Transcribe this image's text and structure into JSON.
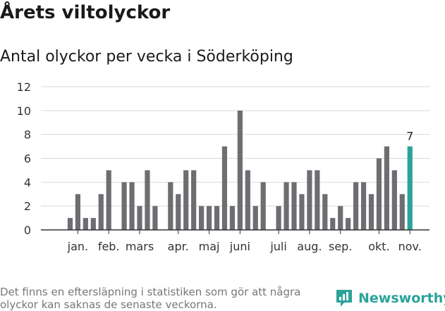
{
  "header": {
    "title": "Årets viltolyckor",
    "subtitle": "Antal olyckor per vecka i Söderköping"
  },
  "footer": {
    "note": "Det finns en eftersläpning i statistiken som gör att några olyckor kan saknas de senaste veckorna.",
    "brand": "Newsworthy"
  },
  "chart_data": {
    "type": "bar",
    "title": "Antal olyckor per vecka i Söderköping",
    "xlabel": "",
    "ylabel": "",
    "ylim": [
      0,
      12
    ],
    "yticks": [
      0,
      2,
      4,
      6,
      8,
      10,
      12
    ],
    "grid": true,
    "bar_color": "#6e6d72",
    "highlight_color": "#2aa39a",
    "highlight_index": 45,
    "data_labels": [
      {
        "index": 45,
        "text": "7"
      }
    ],
    "values": [
      0,
      1,
      3,
      1,
      1,
      3,
      5,
      0,
      4,
      4,
      2,
      5,
      2,
      0,
      4,
      3,
      5,
      5,
      2,
      2,
      2,
      7,
      2,
      10,
      5,
      2,
      4,
      0,
      2,
      4,
      4,
      3,
      5,
      5,
      3,
      1,
      2,
      1,
      4,
      4,
      3,
      6,
      7,
      5,
      3,
      7
    ],
    "month_labels": [
      {
        "label": "jan.",
        "index": 2
      },
      {
        "label": "feb.",
        "index": 6
      },
      {
        "label": "mars",
        "index": 10
      },
      {
        "label": "apr.",
        "index": 15
      },
      {
        "label": "maj",
        "index": 19
      },
      {
        "label": "juni",
        "index": 23
      },
      {
        "label": "juli",
        "index": 28
      },
      {
        "label": "aug.",
        "index": 32
      },
      {
        "label": "sep.",
        "index": 36
      },
      {
        "label": "okt.",
        "index": 41
      },
      {
        "label": "nov.",
        "index": 45
      }
    ]
  },
  "colors": {
    "bar": "#6e6d72",
    "highlight": "#2aa39a",
    "grid": "#d9d9d9",
    "brand": "#2aa39a"
  }
}
